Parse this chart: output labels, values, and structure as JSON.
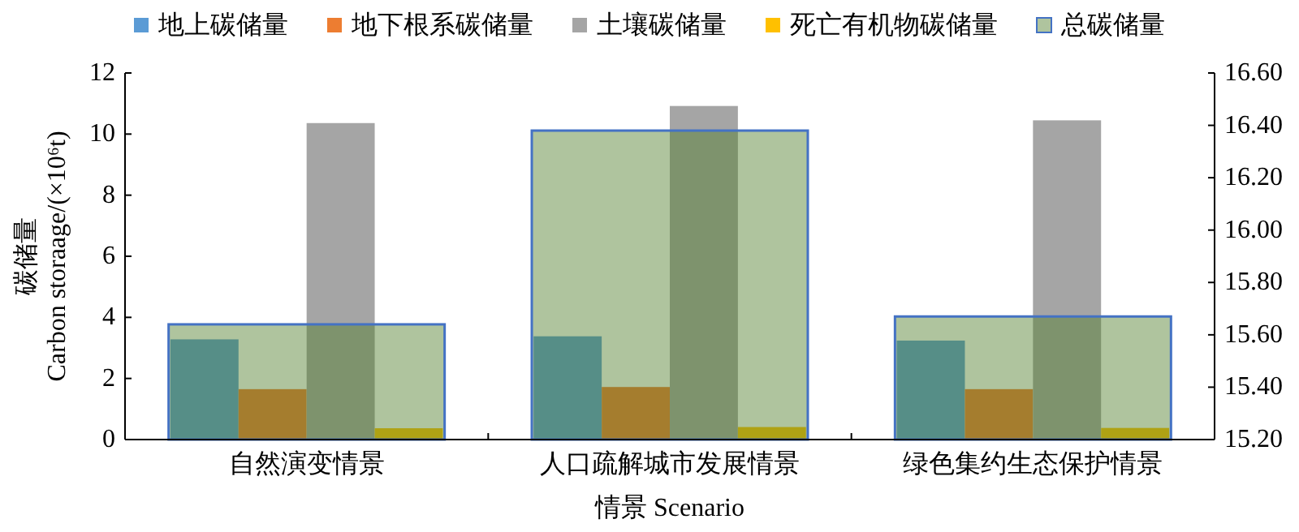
{
  "chart_data": {
    "type": "bar",
    "categories": [
      "自然演变情景",
      "人口疏解城市发展情景",
      "绿色集约生态保护情景"
    ],
    "series": [
      {
        "name": "地上碳储量",
        "color": "#5b9bd5",
        "values": [
          3.28,
          3.38,
          3.24
        ]
      },
      {
        "name": "地下根系碳储量",
        "color": "#ed7d31",
        "values": [
          1.65,
          1.72,
          1.65
        ]
      },
      {
        "name": "土壤碳储量",
        "color": "#a5a5a5",
        "values": [
          10.36,
          10.92,
          10.45
        ]
      },
      {
        "name": "死亡有机物碳储量",
        "color": "#ffc000",
        "values": [
          0.37,
          0.41,
          0.38
        ]
      },
      {
        "name": "总碳储量",
        "color": "#517f2c",
        "axis": "y2",
        "values": [
          15.64,
          16.38,
          15.67
        ]
      }
    ],
    "xlabel": "情景 Scenario",
    "ylabel": "碳储量\nCarbon storaage/(×10⁶t)",
    "ylim": [
      0,
      12
    ],
    "yticks": [
      0,
      2,
      4,
      6,
      8,
      10,
      12
    ],
    "y2lim": [
      15.2,
      16.6
    ],
    "y2ticks": [
      {
        "value": 15.2,
        "label": "15.20"
      },
      {
        "value": 15.4,
        "label": "15.40"
      },
      {
        "value": 15.6,
        "label": "15.60"
      },
      {
        "value": 15.8,
        "label": "15.80"
      },
      {
        "value": 16.0,
        "label": "16.00"
      },
      {
        "value": 16.2,
        "label": "16.20"
      },
      {
        "value": 16.4,
        "label": "16.40"
      },
      {
        "value": 16.6,
        "label": "16.60"
      }
    ],
    "legend": "top",
    "grid": false
  }
}
